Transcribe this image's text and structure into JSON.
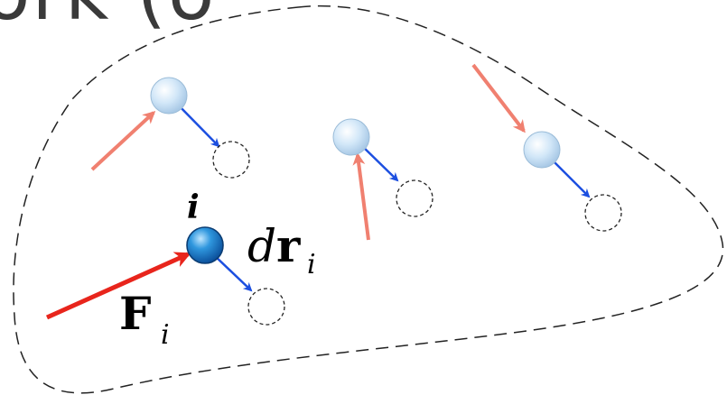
{
  "title_fragment": "ork (δ",
  "labels": {
    "particle_index": "i",
    "force_symbol": "F",
    "force_subscript": "i",
    "displacement_d": "d",
    "displacement_r": "r",
    "displacement_subscript": "i"
  },
  "colors": {
    "light_force_arrow": "#f08070",
    "main_force_arrow": "#e8251c",
    "displacement_arrow": "#1c4fe0",
    "particle_fill": "#c9e3f7",
    "highlighted_particle_fill": "#2a8fd8",
    "boundary": "#222222"
  }
}
